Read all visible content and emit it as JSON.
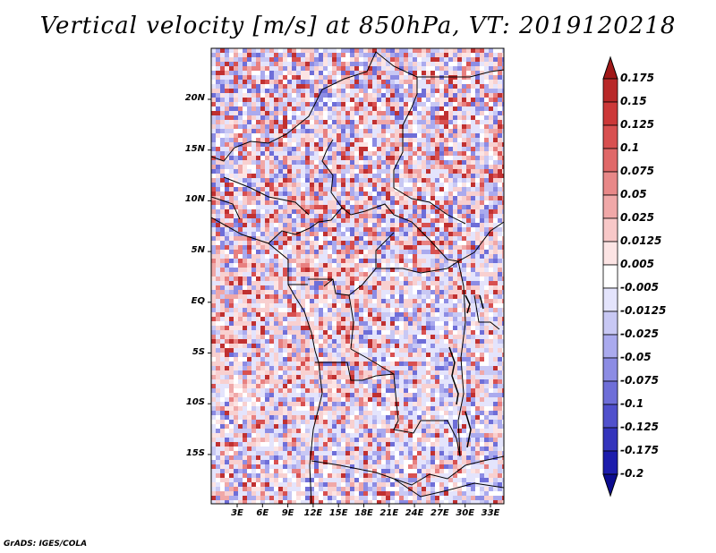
{
  "title": "Vertical velocity [m/s] at 850hPa, VT: 2019120218",
  "footer": "GrADS: IGES/COLA",
  "map": {
    "lat_labels": [
      "20N",
      "15N",
      "10N",
      "5N",
      "EQ",
      "5S",
      "10S",
      "15S"
    ],
    "lon_labels": [
      "3E",
      "6E",
      "9E",
      "12E",
      "15E",
      "18E",
      "21E",
      "24E",
      "27E",
      "30E",
      "33E"
    ]
  },
  "colorbar": {
    "labels": [
      "0.175",
      "0.15",
      "0.125",
      "0.1",
      "0.075",
      "0.05",
      "0.025",
      "0.0125",
      "0.005",
      "-0.005",
      "-0.0125",
      "-0.025",
      "-0.05",
      "-0.075",
      "-0.1",
      "-0.125",
      "-0.175",
      "-0.2"
    ],
    "colors": [
      "#a01818",
      "#b82828",
      "#cc3838",
      "#d85050",
      "#e06868",
      "#e88888",
      "#f0a8a8",
      "#f8c8c8",
      "#fce4e4",
      "#ffffff",
      "#e4e4fc",
      "#c8c8f4",
      "#aaaaee",
      "#8c8ce4",
      "#6e6ed8",
      "#5050cc",
      "#3434bc",
      "#1c1cac",
      "#0c0c90"
    ]
  }
}
